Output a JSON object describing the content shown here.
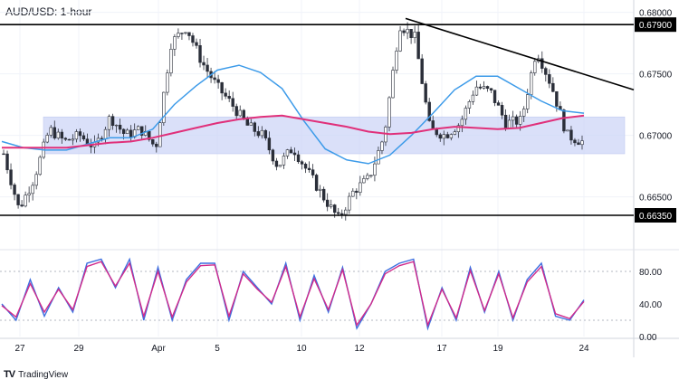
{
  "title": "AUD/USD: 1-hour",
  "brand": {
    "logo": "TV",
    "label": "TradingView"
  },
  "colors": {
    "candle": "#2a2e39",
    "resistance_line": "#000000",
    "trendline": "#000000",
    "range_band": "#cdd6f7",
    "sma_fast": "#3d9be9",
    "sma_slow": "#e0307a",
    "stoch_k": "#3d6fe0",
    "stoch_d": "#d12a8b",
    "grid": "#f0f3fa",
    "price_tag_bg": "#000000",
    "price_tag_text": "#ffffff"
  },
  "chart_data": [
    {
      "type": "candlestick",
      "title": "AUD/USD: 1-hour",
      "x_ticks": [
        "27",
        "29",
        "Apr",
        "5",
        "10",
        "12",
        "17",
        "19",
        "24"
      ],
      "y_ticks": [
        "0.68000",
        "0.67500",
        "0.67000",
        "0.66500"
      ],
      "ylim": [
        0.661,
        0.681
      ],
      "grid": true,
      "levels": [
        {
          "label": "0.67900",
          "value": 0.679
        },
        {
          "label": "0.66350",
          "value": 0.6635
        }
      ],
      "range_band": [
        0.6685,
        0.6715
      ],
      "trendline": {
        "from": 0.6795,
        "to": 0.6737
      },
      "moving_averages": [
        {
          "values": [
            0.6695,
            0.669,
            0.6688,
            0.6688,
            0.6693,
            0.6698,
            0.6698,
            0.6705,
            0.6725,
            0.674,
            0.6753,
            0.6757,
            0.6751,
            0.6738,
            0.6712,
            0.6689,
            0.668,
            0.6677,
            0.6684,
            0.67,
            0.6718,
            0.6737,
            0.6748,
            0.6748,
            0.6738,
            0.6728,
            0.672,
            0.6718
          ]
        },
        {
          "values": [
            0.669,
            0.669,
            0.669,
            0.669,
            0.6692,
            0.6694,
            0.6695,
            0.6698,
            0.6702,
            0.6706,
            0.671,
            0.6713,
            0.6715,
            0.6716,
            0.6713,
            0.671,
            0.6707,
            0.6703,
            0.6701,
            0.6702,
            0.6705,
            0.6707,
            0.6706,
            0.6705,
            0.6706,
            0.671,
            0.6714,
            0.6716
          ]
        }
      ],
      "close_profile": [
        0.6685,
        0.664,
        0.6665,
        0.6705,
        0.6695,
        0.67,
        0.669,
        0.6715,
        0.67,
        0.6705,
        0.669,
        0.6775,
        0.6788,
        0.676,
        0.674,
        0.6725,
        0.6708,
        0.67,
        0.6675,
        0.669,
        0.667,
        0.665,
        0.6632,
        0.6655,
        0.6665,
        0.67,
        0.679,
        0.678,
        0.6705,
        0.67,
        0.671,
        0.674,
        0.6735,
        0.671,
        0.6712,
        0.677,
        0.674,
        0.67,
        0.6695
      ]
    },
    {
      "type": "line",
      "name": "stochastic",
      "y_ticks": [
        "80.00",
        "40.00",
        "0.00"
      ],
      "ylim": [
        0,
        100
      ],
      "series": [
        {
          "values": [
            40,
            20,
            70,
            25,
            60,
            30,
            90,
            95,
            60,
            95,
            20,
            85,
            20,
            70,
            90,
            90,
            20,
            80,
            60,
            40,
            90,
            20,
            75,
            30,
            85,
            10,
            40,
            80,
            90,
            95,
            10,
            60,
            20,
            85,
            30,
            80,
            20,
            70,
            90,
            25,
            20,
            45
          ]
        },
        {
          "values": [
            38,
            24,
            65,
            30,
            58,
            33,
            86,
            92,
            62,
            90,
            25,
            80,
            24,
            67,
            87,
            88,
            25,
            77,
            58,
            42,
            86,
            24,
            71,
            33,
            82,
            14,
            40,
            77,
            87,
            92,
            14,
            58,
            23,
            81,
            32,
            77,
            23,
            67,
            86,
            28,
            22,
            43
          ]
        }
      ]
    }
  ]
}
